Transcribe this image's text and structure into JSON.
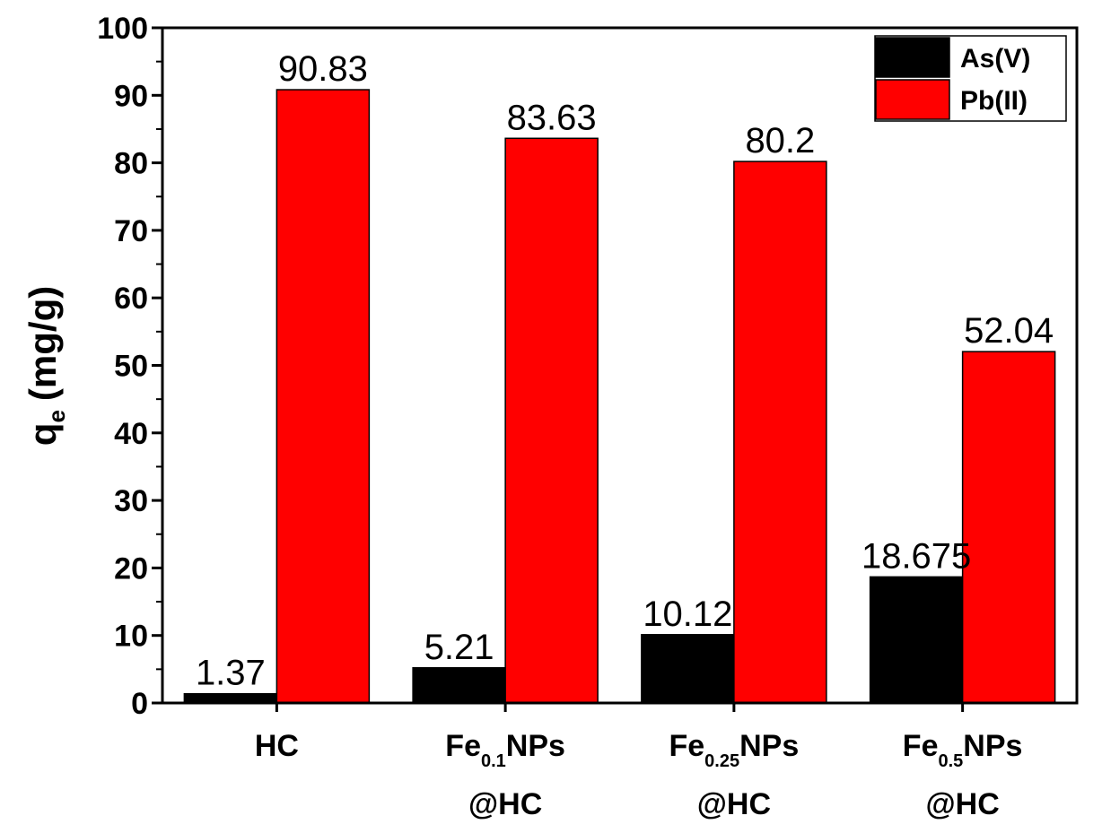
{
  "chart_data": {
    "type": "bar",
    "categories": [
      {
        "line1_pre": "HC",
        "line1_sub": "",
        "line1_post": "",
        "line2": ""
      },
      {
        "line1_pre": "Fe",
        "line1_sub": "0.1",
        "line1_post": "NPs",
        "line2": "@HC"
      },
      {
        "line1_pre": "Fe",
        "line1_sub": "0.25",
        "line1_post": "NPs",
        "line2": "@HC"
      },
      {
        "line1_pre": "Fe",
        "line1_sub": "0.5",
        "line1_post": "NPs",
        "line2": "@HC"
      }
    ],
    "series": [
      {
        "name": "As(V)",
        "color": "#000000",
        "values": [
          1.37,
          5.21,
          10.12,
          18.675
        ],
        "labels": [
          "1.37",
          "5.21",
          "10.12",
          "18.675"
        ]
      },
      {
        "name": "Pb(II)",
        "color": "#ff0000",
        "values": [
          90.83,
          83.63,
          80.2,
          52.04
        ],
        "labels": [
          "90.83",
          "83.63",
          "80.2",
          "52.04"
        ]
      }
    ],
    "ylabel_main": "q",
    "ylabel_sub": "e",
    "ylabel_unit": "(mg/g)",
    "ylim": [
      0,
      100
    ],
    "yticks": [
      0,
      10,
      20,
      30,
      40,
      50,
      60,
      70,
      80,
      90,
      100
    ],
    "legend_position": "top-right",
    "grid": false
  }
}
